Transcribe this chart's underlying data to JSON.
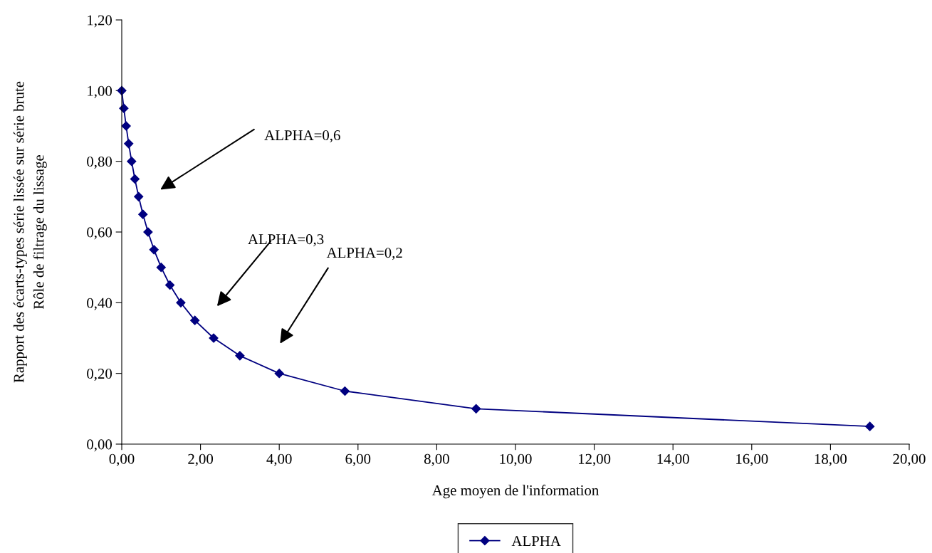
{
  "chart_data": {
    "type": "line",
    "xlabel": "Age moyen de l'information",
    "ylabel": "Rapport des écarts-types série lissée sur série brute\nRôle de filtrage du lissage",
    "x": [
      0,
      0.0526,
      0.111,
      0.176,
      0.25,
      0.333,
      0.429,
      0.538,
      0.667,
      0.818,
      1.0,
      1.222,
      1.5,
      1.857,
      2.333,
      3.0,
      4.0,
      5.667,
      9.0,
      19.0
    ],
    "series": [
      {
        "name": "ALPHA",
        "color": "#000080",
        "values": [
          1.0,
          0.95,
          0.9,
          0.85,
          0.8,
          0.75,
          0.7,
          0.65,
          0.6,
          0.55,
          0.5,
          0.45,
          0.4,
          0.35,
          0.3,
          0.25,
          0.2,
          0.15,
          0.1,
          0.05
        ]
      }
    ],
    "marker": "diamond",
    "line_style": "solid",
    "xlim": [
      0,
      20
    ],
    "ylim": [
      0,
      1.2
    ],
    "xticks": [
      {
        "value": 0,
        "label": "0,00"
      },
      {
        "value": 2,
        "label": "2,00"
      },
      {
        "value": 4,
        "label": "4,00"
      },
      {
        "value": 6,
        "label": "6,00"
      },
      {
        "value": 8,
        "label": "8,00"
      },
      {
        "value": 10,
        "label": "10,00"
      },
      {
        "value": 12,
        "label": "12,00"
      },
      {
        "value": 14,
        "label": "14,00"
      },
      {
        "value": 16,
        "label": "16,00"
      },
      {
        "value": 18,
        "label": "18,00"
      },
      {
        "value": 20,
        "label": "20,00"
      }
    ],
    "yticks": [
      {
        "value": 0,
        "label": "0,00"
      },
      {
        "value": 0.2,
        "label": "0,20"
      },
      {
        "value": 0.4,
        "label": "0,40"
      },
      {
        "value": 0.6,
        "label": "0,60"
      },
      {
        "value": 0.8,
        "label": "0,80"
      },
      {
        "value": 1.0,
        "label": "1,00"
      },
      {
        "value": 1.2,
        "label": "1,20"
      }
    ],
    "annotations": [
      "ALPHA=0,6",
      "ALPHA=0,3",
      "ALPHA=0,2"
    ],
    "grid": false,
    "legend": "bottom"
  }
}
